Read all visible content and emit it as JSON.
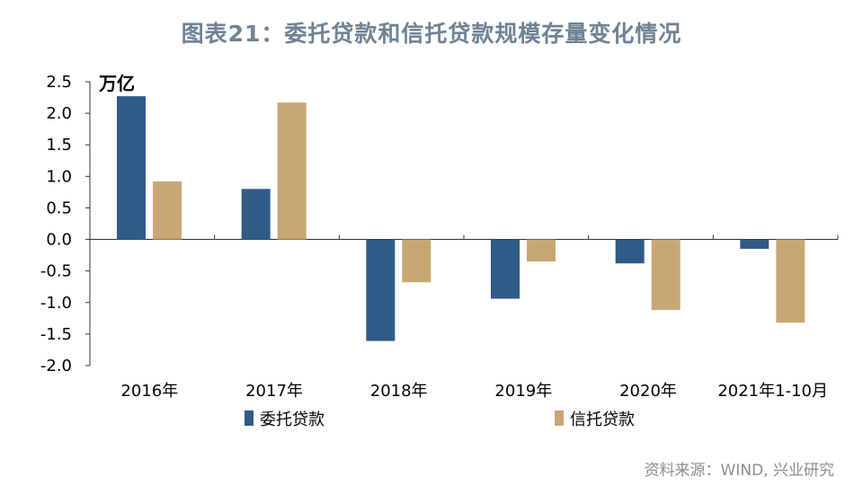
{
  "chart_data": {
    "type": "bar",
    "title": "图表21：委托贷款和信托贷款规模存量变化情况",
    "unit_label": "万亿",
    "categories": [
      "2016年",
      "2017年",
      "2018年",
      "2019年",
      "2020年",
      "2021年1-10月"
    ],
    "series": [
      {
        "name": "委托贷款",
        "color": "#2f5b87",
        "values": [
          2.27,
          0.8,
          -1.61,
          -0.94,
          -0.38,
          -0.15
        ]
      },
      {
        "name": "信托贷款",
        "color": "#c9a774",
        "values": [
          0.92,
          2.17,
          -0.68,
          -0.35,
          -1.12,
          -1.32
        ]
      }
    ],
    "y_ticks": [
      "2.5",
      "2.0",
      "1.5",
      "1.0",
      "0.5",
      "0.0",
      "-0.5",
      "-1.0",
      "-1.5",
      "-2.0"
    ],
    "ylim": [
      -2.0,
      2.5
    ],
    "grid": false,
    "legend_position": "bottom"
  },
  "source": "资料来源：WIND, 兴业研究"
}
